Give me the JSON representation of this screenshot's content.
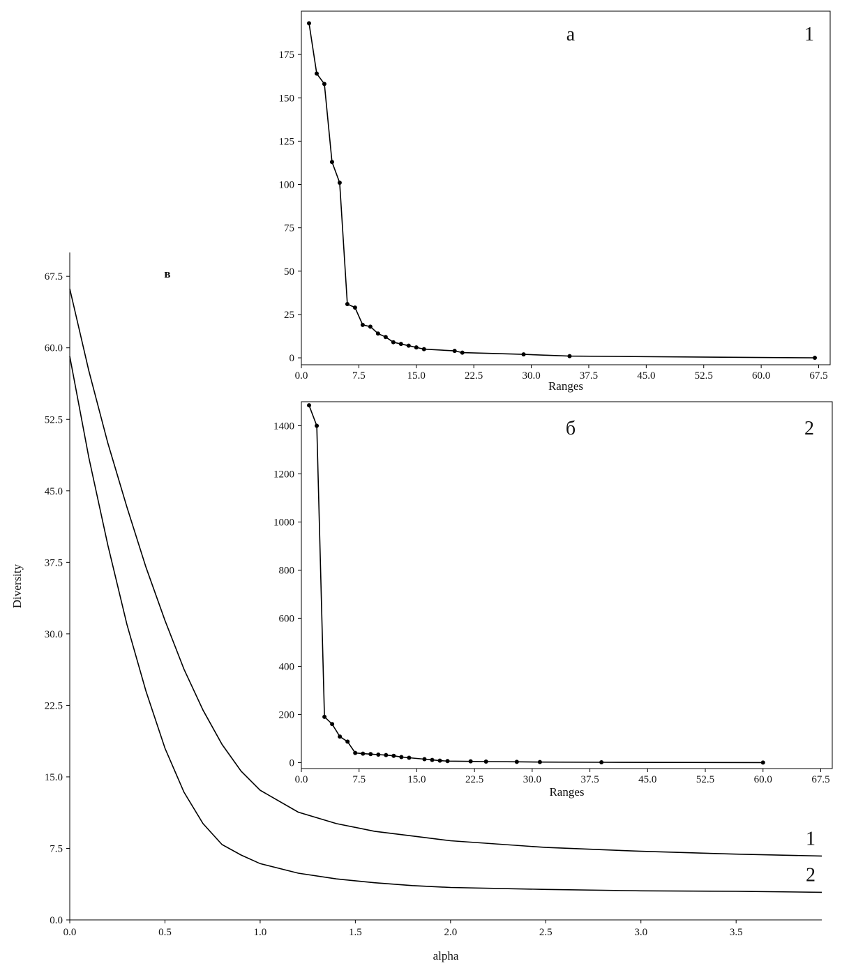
{
  "chart_data": [
    {
      "id": "main",
      "type": "line",
      "panel_label": "в",
      "xlabel": "alpha",
      "ylabel": "Diversity",
      "xlim": [
        0,
        3.95
      ],
      "ylim": [
        0,
        70
      ],
      "xticks": [
        0.0,
        0.5,
        1.0,
        1.5,
        2.0,
        2.5,
        3.0,
        3.5
      ],
      "yticks": [
        0.0,
        7.5,
        15.0,
        22.5,
        30.0,
        37.5,
        45.0,
        52.5,
        60.0,
        67.5
      ],
      "grid": false,
      "series": [
        {
          "name": "1",
          "x": [
            0,
            0.1,
            0.2,
            0.3,
            0.4,
            0.5,
            0.6,
            0.7,
            0.8,
            0.9,
            1.0,
            1.2,
            1.4,
            1.6,
            1.8,
            2.0,
            2.5,
            3.0,
            3.5,
            3.95
          ],
          "y": [
            66.2,
            57.6,
            50.0,
            43.3,
            37.0,
            31.4,
            26.3,
            22.0,
            18.4,
            15.6,
            13.6,
            11.3,
            10.1,
            9.3,
            8.8,
            8.3,
            7.6,
            7.2,
            6.9,
            6.7
          ]
        },
        {
          "name": "2",
          "x": [
            0,
            0.1,
            0.2,
            0.3,
            0.4,
            0.5,
            0.6,
            0.7,
            0.8,
            0.9,
            1.0,
            1.2,
            1.4,
            1.6,
            1.8,
            2.0,
            2.5,
            3.0,
            3.5,
            3.95
          ],
          "y": [
            59.1,
            48.5,
            39.3,
            31.0,
            24.0,
            18.0,
            13.4,
            10.1,
            7.9,
            6.8,
            5.9,
            4.9,
            4.3,
            3.9,
            3.6,
            3.4,
            3.2,
            3.05,
            3.0,
            2.9
          ]
        }
      ]
    },
    {
      "id": "inset_a",
      "type": "line",
      "panel_label": "а",
      "curve_label": "1",
      "xlabel": "Ranges",
      "ylabel": "",
      "xlim": [
        0,
        69
      ],
      "ylim": [
        -4,
        200
      ],
      "xticks": [
        0.0,
        7.5,
        15.0,
        22.5,
        30.0,
        37.5,
        45.0,
        52.5,
        60.0,
        67.5
      ],
      "yticks": [
        0,
        25,
        50,
        75,
        100,
        125,
        150,
        175
      ],
      "grid": false,
      "markers": true,
      "series": [
        {
          "name": "",
          "x": [
            1,
            2,
            3,
            4,
            5,
            6,
            7,
            8,
            9,
            10,
            11,
            12,
            13,
            14,
            15,
            16,
            20,
            21,
            29,
            35,
            67
          ],
          "y": [
            193,
            164,
            158,
            113,
            101,
            31,
            29,
            19,
            18,
            14,
            12,
            9,
            8,
            7,
            6,
            5,
            4,
            3,
            2,
            1,
            0
          ]
        }
      ]
    },
    {
      "id": "inset_b",
      "type": "line",
      "panel_label": "б",
      "curve_label": "2",
      "xlabel": "Ranges",
      "ylabel": "",
      "xlim": [
        0,
        69
      ],
      "ylim": [
        -25,
        1500
      ],
      "xticks": [
        0.0,
        7.5,
        15.0,
        22.5,
        30.0,
        37.5,
        45.0,
        52.5,
        60.0,
        67.5
      ],
      "yticks": [
        0,
        200,
        400,
        600,
        800,
        1000,
        1200,
        1400
      ],
      "grid": false,
      "markers": true,
      "series": [
        {
          "name": "",
          "x": [
            1,
            2,
            3,
            4,
            5,
            6,
            7,
            8,
            9,
            10,
            11,
            12,
            13,
            14,
            16,
            17,
            18,
            19,
            22,
            24,
            28,
            31,
            39,
            60
          ],
          "y": [
            1485,
            1400,
            190,
            160,
            108,
            87,
            40,
            37,
            35,
            33,
            31,
            28,
            23,
            20,
            14,
            11,
            8,
            6,
            5,
            4,
            3,
            2,
            1,
            0
          ]
        }
      ]
    }
  ]
}
